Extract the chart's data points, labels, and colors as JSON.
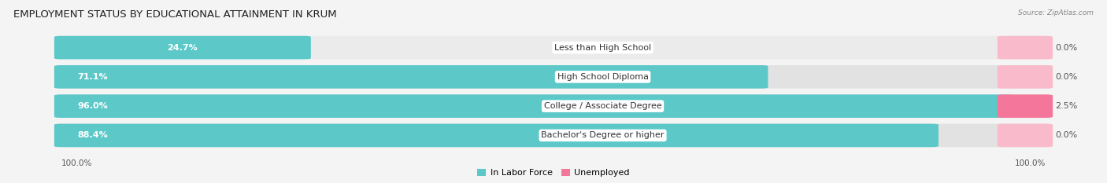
{
  "title": "EMPLOYMENT STATUS BY EDUCATIONAL ATTAINMENT IN KRUM",
  "source": "Source: ZipAtlas.com",
  "categories": [
    "Less than High School",
    "High School Diploma",
    "College / Associate Degree",
    "Bachelor's Degree or higher"
  ],
  "in_labor_force": [
    24.7,
    71.1,
    96.0,
    88.4
  ],
  "unemployed": [
    0.0,
    0.0,
    2.5,
    0.0
  ],
  "labor_color": "#5CC8C8",
  "unemployed_color": "#F4769A",
  "unemployed_color_light": "#F9BBCC",
  "bg_color": "#F4F4F4",
  "row_bg_colors": [
    "#EBEBEB",
    "#E2E2E2",
    "#EBEBEB",
    "#E2E2E2"
  ],
  "x_left_label": "100.0%",
  "x_right_label": "100.0%",
  "legend_labor": "In Labor Force",
  "legend_unemployed": "Unemployed",
  "title_fontsize": 9.5,
  "label_fontsize": 8,
  "tick_fontsize": 7.5,
  "figsize": [
    14.06,
    2.33
  ],
  "dpi": 100
}
